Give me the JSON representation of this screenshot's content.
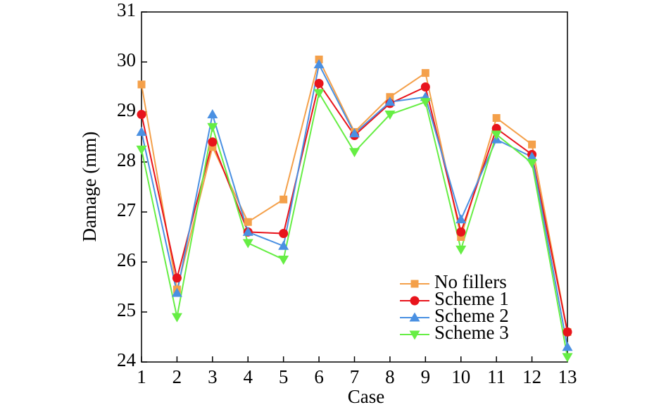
{
  "chart_data": {
    "type": "line",
    "x_label": "Case",
    "y_label": "Damage (mm)",
    "x": [
      1,
      2,
      3,
      4,
      5,
      6,
      7,
      8,
      9,
      10,
      11,
      12,
      13
    ],
    "xlim": [
      1,
      13
    ],
    "xticks": [
      1,
      2,
      3,
      4,
      5,
      6,
      7,
      8,
      9,
      10,
      11,
      12,
      13
    ],
    "ylim": [
      24,
      31
    ],
    "yticks": [
      24,
      25,
      26,
      27,
      28,
      29,
      30,
      31
    ],
    "legend": "lower right",
    "series": [
      {
        "name": "No fillers",
        "color": "#f4a04a",
        "marker": "square",
        "values": [
          29.55,
          25.45,
          28.3,
          26.8,
          27.25,
          30.05,
          28.6,
          29.3,
          29.78,
          26.5,
          28.88,
          28.35,
          24.6
        ]
      },
      {
        "name": "Scheme 1",
        "color": "#e8141c",
        "marker": "circle",
        "values": [
          28.95,
          25.68,
          28.4,
          26.6,
          26.57,
          29.57,
          28.53,
          29.17,
          29.5,
          26.6,
          28.67,
          28.15,
          24.6
        ]
      },
      {
        "name": "Scheme 2",
        "color": "#4a90e2",
        "marker": "triangle-up",
        "values": [
          28.6,
          25.38,
          28.95,
          26.6,
          26.32,
          29.95,
          28.57,
          29.2,
          29.3,
          26.85,
          28.45,
          28.1,
          24.3
        ]
      },
      {
        "name": "Scheme 3",
        "color": "#66ee44",
        "marker": "triangle-down",
        "values": [
          28.25,
          24.9,
          28.7,
          26.38,
          26.05,
          29.38,
          28.2,
          28.95,
          29.2,
          26.25,
          28.55,
          27.98,
          24.1
        ]
      }
    ]
  }
}
